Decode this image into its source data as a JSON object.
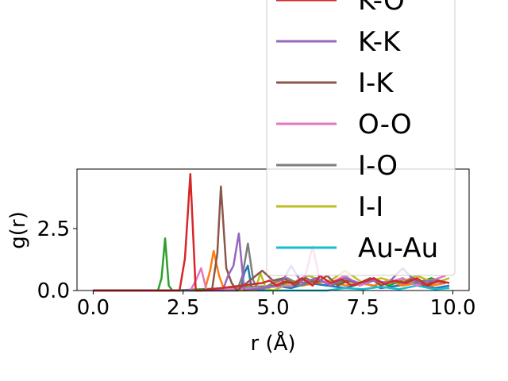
{
  "chart_data": {
    "type": "line",
    "xlabel": "r (Å)",
    "ylabel": "g(r)",
    "xlim": [
      -0.45,
      10.45
    ],
    "ylim": [
      0,
      4.9
    ],
    "xticks": [
      0.0,
      2.5,
      5.0,
      7.5,
      10.0
    ],
    "xtick_labels": [
      "0.0",
      "2.5",
      "5.0",
      "7.5",
      "10.0"
    ],
    "yticks": [
      0.0,
      2.5
    ],
    "ytick_labels": [
      "0.0",
      "2.5"
    ],
    "grid": false,
    "legend_placement": "upper right, extends above the axes",
    "series": [
      {
        "name": "K-O",
        "color": "#d62728",
        "x": [
          0,
          2.4,
          2.55,
          2.7,
          2.85,
          3.0,
          4.7,
          4.9,
          5.1,
          5.3,
          5.6,
          5.8,
          6.1,
          6.3,
          6.6,
          6.9,
          7.2,
          7.5,
          7.8,
          8.1,
          8.4,
          8.7,
          9.0,
          9.3,
          9.6,
          9.9
        ],
        "y": [
          0,
          0,
          1.3,
          4.7,
          0,
          0,
          0.3,
          0.4,
          0.2,
          0.35,
          0.3,
          0.5,
          0.2,
          0.6,
          0.3,
          0.45,
          0.2,
          0.35,
          0.5,
          0.25,
          0.4,
          0.3,
          0.5,
          0.2,
          0.4,
          0.3
        ]
      },
      {
        "name": "K-K",
        "color": "#9467bd",
        "x": [
          0,
          3.6,
          3.75,
          3.9,
          4.05,
          4.2,
          5.2,
          5.5,
          5.8,
          6.2,
          6.6,
          7.0,
          7.4,
          7.8,
          8.2,
          8.6,
          9.0,
          9.4,
          9.8
        ],
        "y": [
          0,
          0,
          0.6,
          1.0,
          2.3,
          0,
          0.2,
          1.0,
          0.3,
          0.5,
          0.2,
          0.5,
          0.3,
          0.4,
          0.3,
          0.9,
          0.3,
          0.4,
          0.3
        ]
      },
      {
        "name": "I-K",
        "color": "#8c564b",
        "x": [
          0,
          3.3,
          3.45,
          3.55,
          3.7,
          3.85,
          4.0,
          4.7,
          5.0,
          5.3,
          5.6,
          5.9,
          6.2,
          6.5,
          6.8,
          7.1,
          7.4,
          7.7,
          8.0,
          8.3,
          8.6,
          8.9,
          9.2,
          9.5,
          9.8
        ],
        "y": [
          0,
          0,
          1.5,
          4.2,
          0.9,
          0.3,
          0,
          0.8,
          0.4,
          0.5,
          0.2,
          0.5,
          0.3,
          0.6,
          0.2,
          0.4,
          0.3,
          0.5,
          0.2,
          0.4,
          0.3,
          0.5,
          0.2,
          0.4,
          0.3
        ]
      },
      {
        "name": "O-O",
        "color": "#e377c2",
        "x": [
          0,
          2.7,
          2.85,
          3.0,
          3.15,
          5.6,
          5.9,
          6.1,
          6.3,
          6.6,
          7.0,
          7.4,
          7.8,
          8.2,
          8.6,
          9.0,
          9.4,
          9.8
        ],
        "y": [
          0,
          0,
          0.4,
          0.9,
          0,
          0.2,
          0.6,
          1.8,
          0.4,
          0.3,
          0.6,
          0.2,
          0.4,
          0.3,
          0.5,
          0.2,
          0.4,
          0.6
        ]
      },
      {
        "name": "I-O",
        "color": "#7f7f7f",
        "x": [
          0,
          4.0,
          4.15,
          4.3,
          4.45,
          4.6,
          5.0,
          5.4,
          5.8,
          6.2,
          6.6,
          7.0,
          7.4,
          7.8,
          8.2,
          8.6,
          9.0,
          9.4,
          9.8
        ],
        "y": [
          0,
          0,
          0.6,
          1.9,
          0.4,
          0,
          0.3,
          0.5,
          0.2,
          0.4,
          0.3,
          0.5,
          0.2,
          0.4,
          0.3,
          0.5,
          0.2,
          0.4,
          0.3
        ]
      },
      {
        "name": "I-I",
        "color": "#bcbd22",
        "x": [
          0,
          4.5,
          4.65,
          4.8,
          5.0,
          5.5,
          6.0,
          6.5,
          7.0,
          7.5,
          8.0,
          8.5,
          9.0,
          9.5,
          9.9
        ],
        "y": [
          0,
          0,
          0.7,
          0.1,
          0,
          0.3,
          0.6,
          0.3,
          0.8,
          0.3,
          0.5,
          0.3,
          0.6,
          0.3,
          0.5
        ]
      },
      {
        "name": "Au-Au",
        "color": "#17becf",
        "x": [
          0,
          6.5,
          7.0,
          7.5,
          8.0,
          8.5,
          9.0,
          9.5,
          9.9
        ],
        "y": [
          0,
          0,
          0.1,
          0.05,
          0.15,
          0.05,
          0.2,
          0.05,
          0.1
        ]
      },
      {
        "name": "",
        "color": "#2ca02c",
        "x": [
          0,
          1.8,
          1.9,
          2.0,
          2.1,
          2.2,
          5.2,
          5.5,
          5.8,
          6.2,
          6.6,
          7.0,
          7.4,
          7.8,
          8.2,
          8.6,
          9.0,
          9.4,
          9.8
        ],
        "y": [
          0,
          0,
          0.5,
          2.1,
          0.2,
          0,
          0.2,
          0.4,
          0.2,
          0.5,
          0.2,
          0.4,
          0.3,
          0.5,
          0.2,
          0.4,
          0.3,
          0.5,
          0.3
        ]
      },
      {
        "name": "",
        "color": "#ff7f0e",
        "x": [
          0,
          3.1,
          3.25,
          3.35,
          3.5,
          3.65,
          3.8,
          5.0,
          5.4,
          5.8,
          6.2,
          6.6,
          7.0,
          7.4,
          7.8,
          8.2,
          8.6,
          9.0,
          9.4,
          9.8
        ],
        "y": [
          0,
          0,
          0.8,
          1.6,
          0.6,
          0,
          0,
          0.2,
          0.4,
          0.2,
          0.3,
          0.4,
          0.2,
          0.3,
          0.2,
          0.4,
          0.2,
          0.3,
          0.2,
          0.3
        ]
      },
      {
        "name": "",
        "color": "#1f77b4",
        "x": [
          0,
          4.1,
          4.2,
          4.3,
          4.4,
          4.6,
          5.0,
          5.5,
          6.0,
          6.5,
          7.0,
          7.5,
          8.0,
          8.5,
          9.0,
          9.5,
          9.9
        ],
        "y": [
          0,
          0,
          0.7,
          1.0,
          0.1,
          0,
          0.2,
          0.1,
          0.3,
          0.2,
          0.1,
          0.3,
          0.1,
          0.2,
          0.3,
          0.1,
          0.2
        ]
      }
    ]
  }
}
